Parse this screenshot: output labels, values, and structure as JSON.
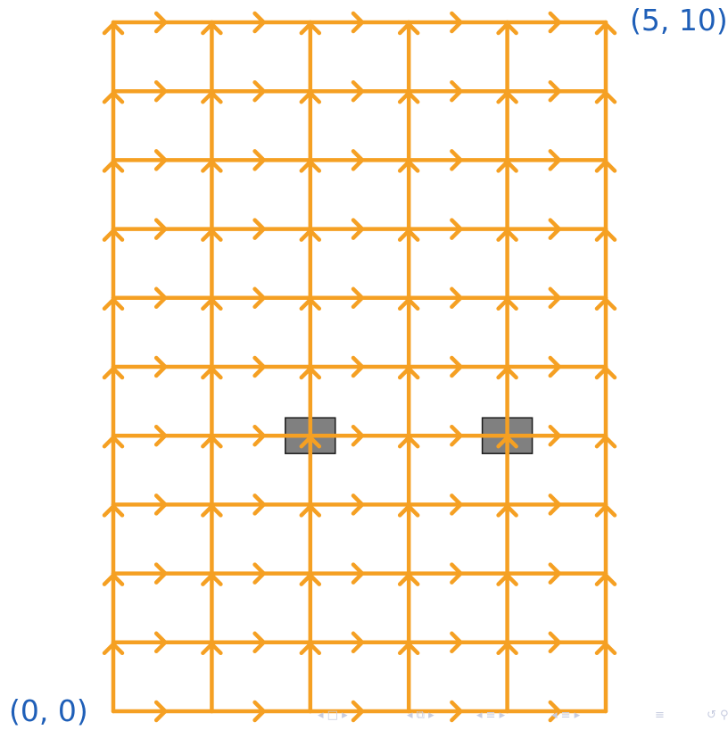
{
  "diagram": {
    "grid": {
      "cols": 5,
      "rows": 10
    },
    "edge_color": "#f5a023",
    "origin_label": "(0, 0)",
    "end_label": "(5, 10)",
    "obstacles": [
      {
        "x": 2,
        "y": 4,
        "fill": "#808080"
      },
      {
        "x": 4,
        "y": 4,
        "fill": "#808080"
      }
    ]
  },
  "nav": {
    "color": "#c7cce0",
    "icons": [
      "frame-nav-icon",
      "section-nav-icon",
      "subsection-nav-icon",
      "slide-nav-icon",
      "toc-icon",
      "search-icon"
    ]
  }
}
